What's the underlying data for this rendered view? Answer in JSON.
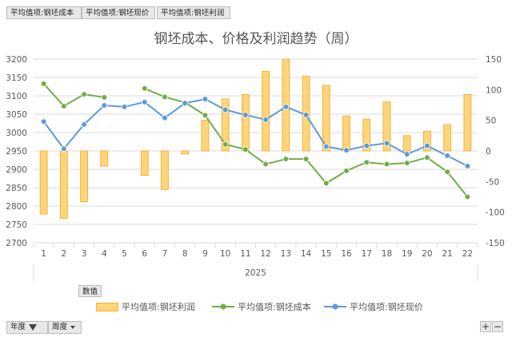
{
  "field_buttons": [
    "平均值项:钢坯成本",
    "平均值项:钢坯现价",
    "平均值项:钢坯利润"
  ],
  "values_button": "数值",
  "bottom_buttons": {
    "year": "年度",
    "week": "周度"
  },
  "zoom": {
    "plus": "+",
    "minus": "−"
  },
  "icons": {
    "filter": "filter-icon",
    "dropdown": "chevron-down-icon"
  },
  "colors": {
    "cost": "#70ad47",
    "price": "#5b9bd5",
    "profit_fill": "#ffd57a",
    "profit_stroke": "#f2b13c",
    "grid": "#d9d9d9"
  },
  "chart_data": {
    "type": "bar+line",
    "title": "钢坯成本、价格及利润趋势（周）",
    "x": [
      "1",
      "2",
      "3",
      "4",
      "5",
      "6",
      "7",
      "8",
      "9",
      "10",
      "11",
      "12",
      "13",
      "14",
      "15",
      "16",
      "17",
      "18",
      "19",
      "20",
      "21",
      "22"
    ],
    "xgroup": "2025",
    "ylim_left": [
      2700,
      3200
    ],
    "yticks_left": [
      2700,
      2750,
      2800,
      2850,
      2900,
      2950,
      3000,
      3050,
      3100,
      3150,
      3200
    ],
    "ylim_right": [
      -150,
      150
    ],
    "yticks_right": [
      -150,
      -100,
      -50,
      0,
      50,
      100,
      150
    ],
    "grid": true,
    "legend_position": "bottom",
    "series": [
      {
        "name": "平均值项:钢坯利润",
        "kind": "bar",
        "axis": "right",
        "values": [
          -103,
          -110,
          -83,
          -25,
          null,
          -40,
          -63,
          -5,
          50,
          85,
          92,
          130,
          150,
          122,
          107,
          57,
          52,
          80,
          25,
          32,
          43,
          92
        ]
      },
      {
        "name": "平均值项:钢坯成本",
        "kind": "line",
        "axis": "left",
        "values": [
          3133,
          3072,
          3104,
          3096,
          null,
          3120,
          3097,
          3082,
          3047,
          2968,
          2954,
          2914,
          2928,
          2928,
          2862,
          2896,
          2919,
          2914,
          2917,
          2932,
          2893,
          2825
        ]
      },
      {
        "name": "平均值项:钢坯现价",
        "kind": "line",
        "axis": "left",
        "values": [
          3030,
          2956,
          3022,
          3074,
          3070,
          3083,
          3040,
          3080,
          3091,
          3062,
          3048,
          3035,
          3070,
          3048,
          2962,
          2952,
          2964,
          2971,
          2941,
          2964,
          2937,
          2909
        ]
      }
    ]
  }
}
